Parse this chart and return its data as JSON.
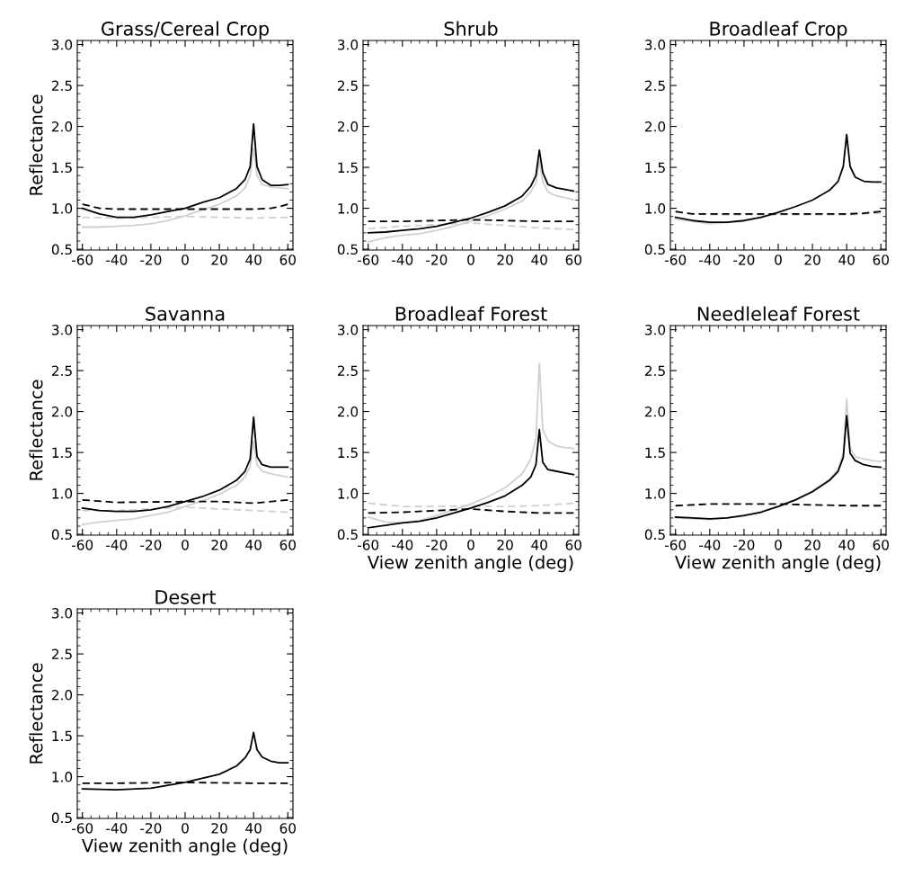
{
  "chart_data": [
    {
      "type": "line",
      "title": "Grass/Cereal Crop",
      "ylabel": "Reflectance",
      "xlim": [
        -63,
        63
      ],
      "ylim": [
        0.49,
        3.05
      ],
      "xticks": [
        -60,
        -40,
        -20,
        0,
        20,
        40,
        60
      ],
      "yticks": [
        0.5,
        {
          "value": 1,
          "label": "1.0"
        },
        1.5,
        {
          "value": 2,
          "label": "2.0"
        },
        2.5,
        {
          "value": 3,
          "label": "3.0"
        }
      ],
      "series": [
        {
          "color": "#d0d0d0",
          "line_style": "solid",
          "x": [
            -60,
            -50,
            -40,
            -30,
            -20,
            -10,
            0,
            10,
            20,
            30,
            35,
            38,
            40,
            42,
            45,
            50,
            55,
            60
          ],
          "values": [
            0.77,
            0.77,
            0.78,
            0.79,
            0.81,
            0.85,
            0.91,
            0.98,
            1.05,
            1.15,
            1.25,
            1.4,
            1.73,
            1.4,
            1.29,
            1.26,
            1.25,
            1.24
          ]
        },
        {
          "color": "#d0d0d0",
          "line_style": "dashed",
          "x": [
            -60,
            -40,
            0,
            20,
            40,
            60
          ],
          "values": [
            0.89,
            0.88,
            0.9,
            0.89,
            0.88,
            0.89
          ]
        },
        {
          "color": "#000000",
          "line_style": "solid",
          "x": [
            -60,
            -50,
            -40,
            -30,
            -20,
            -10,
            0,
            10,
            20,
            30,
            35,
            38,
            40,
            42,
            45,
            50,
            55,
            60
          ],
          "values": [
            1.0,
            0.93,
            0.89,
            0.89,
            0.92,
            0.96,
            1.0,
            1.07,
            1.13,
            1.24,
            1.35,
            1.51,
            2.03,
            1.51,
            1.35,
            1.28,
            1.28,
            1.29
          ]
        },
        {
          "color": "#000000",
          "line_style": "dashed",
          "x": [
            -60,
            -50,
            -40,
            0,
            40,
            50,
            55,
            60
          ],
          "values": [
            1.05,
            1.0,
            0.99,
            0.99,
            0.99,
            1.0,
            1.02,
            1.05
          ]
        }
      ]
    },
    {
      "type": "line",
      "title": "Shrub",
      "xlim": [
        -63,
        63
      ],
      "ylim": [
        0.49,
        3.05
      ],
      "xticks": [
        -60,
        -40,
        -20,
        0,
        20,
        40,
        60
      ],
      "yticks": [
        0.5,
        {
          "value": 1,
          "label": "1.0"
        },
        1.5,
        {
          "value": 2,
          "label": "2.0"
        },
        2.5,
        {
          "value": 3,
          "label": "3.0"
        }
      ],
      "series": [
        {
          "color": "#d0d0d0",
          "line_style": "solid",
          "x": [
            -60,
            -50,
            -40,
            -30,
            -20,
            -10,
            0,
            10,
            20,
            30,
            35,
            38,
            40,
            42,
            45,
            50,
            55,
            60
          ],
          "values": [
            0.59,
            0.64,
            0.67,
            0.69,
            0.73,
            0.78,
            0.84,
            0.91,
            0.99,
            1.09,
            1.2,
            1.31,
            1.58,
            1.33,
            1.2,
            1.15,
            1.13,
            1.1
          ]
        },
        {
          "color": "#d0d0d0",
          "line_style": "dashed",
          "x": [
            -60,
            -40,
            -20,
            0,
            20,
            40,
            60
          ],
          "values": [
            0.75,
            0.78,
            0.8,
            0.82,
            0.79,
            0.76,
            0.74
          ]
        },
        {
          "color": "#000000",
          "line_style": "solid",
          "x": [
            -60,
            -50,
            -40,
            -30,
            -20,
            -10,
            0,
            10,
            20,
            30,
            35,
            38,
            40,
            42,
            45,
            50,
            55,
            60
          ],
          "values": [
            0.7,
            0.71,
            0.73,
            0.75,
            0.78,
            0.83,
            0.88,
            0.95,
            1.03,
            1.15,
            1.27,
            1.4,
            1.71,
            1.44,
            1.29,
            1.25,
            1.23,
            1.21
          ]
        },
        {
          "color": "#000000",
          "line_style": "dashed",
          "x": [
            -60,
            -40,
            -20,
            0,
            20,
            40,
            60
          ],
          "values": [
            0.84,
            0.84,
            0.85,
            0.86,
            0.85,
            0.84,
            0.84
          ]
        }
      ]
    },
    {
      "type": "line",
      "title": "Broadleaf Crop",
      "xlim": [
        -63,
        63
      ],
      "ylim": [
        0.49,
        3.05
      ],
      "xticks": [
        -60,
        -40,
        -20,
        0,
        20,
        40,
        60
      ],
      "yticks": [
        0.5,
        {
          "value": 1,
          "label": "1.0"
        },
        1.5,
        {
          "value": 2,
          "label": "2.0"
        },
        2.5,
        {
          "value": 3,
          "label": "3.0"
        }
      ],
      "series": [
        {
          "color": "#d0d0d0",
          "line_style": "solid",
          "x": [
            -60,
            -40,
            -20,
            0
          ],
          "values": [
            0.87,
            0.81,
            0.84,
            0.94
          ]
        },
        {
          "color": "#d0d0d0",
          "line_style": "dashed",
          "x": [
            -60,
            -40,
            0,
            40,
            60
          ],
          "values": [
            0.95,
            0.92,
            0.92,
            0.92,
            0.94
          ]
        },
        {
          "color": "#000000",
          "line_style": "solid",
          "x": [
            -60,
            -50,
            -40,
            -30,
            -20,
            -10,
            0,
            10,
            20,
            30,
            35,
            38,
            40,
            42,
            45,
            50,
            55,
            60
          ],
          "values": [
            0.89,
            0.85,
            0.83,
            0.83,
            0.85,
            0.89,
            0.95,
            1.02,
            1.1,
            1.22,
            1.33,
            1.51,
            1.9,
            1.51,
            1.38,
            1.33,
            1.32,
            1.32
          ]
        },
        {
          "color": "#000000",
          "line_style": "dashed",
          "x": [
            -60,
            -50,
            -40,
            0,
            40,
            50,
            60
          ],
          "values": [
            0.96,
            0.93,
            0.93,
            0.93,
            0.93,
            0.94,
            0.96
          ]
        }
      ]
    },
    {
      "type": "line",
      "title": "Savanna",
      "ylabel": "Reflectance",
      "xlim": [
        -63,
        63
      ],
      "ylim": [
        0.49,
        3.05
      ],
      "xticks": [
        -60,
        -40,
        -20,
        0,
        20,
        40,
        60
      ],
      "yticks": [
        0.5,
        {
          "value": 1,
          "label": "1.0"
        },
        1.5,
        {
          "value": 2,
          "label": "2.0"
        },
        2.5,
        {
          "value": 3,
          "label": "3.0"
        }
      ],
      "series": [
        {
          "color": "#d0d0d0",
          "line_style": "solid",
          "x": [
            -60,
            -50,
            -40,
            -30,
            -20,
            -10,
            0,
            10,
            20,
            30,
            35,
            38,
            40,
            42,
            45,
            50,
            55,
            60
          ],
          "values": [
            0.62,
            0.65,
            0.67,
            0.69,
            0.73,
            0.77,
            0.84,
            0.91,
            0.99,
            1.1,
            1.2,
            1.33,
            1.64,
            1.35,
            1.27,
            1.24,
            1.22,
            1.2
          ]
        },
        {
          "color": "#d0d0d0",
          "line_style": "dashed",
          "x": [
            -60,
            -40,
            -20,
            0,
            20,
            40,
            60
          ],
          "values": [
            0.79,
            0.79,
            0.81,
            0.83,
            0.81,
            0.79,
            0.77
          ]
        },
        {
          "color": "#000000",
          "line_style": "solid",
          "x": [
            -60,
            -50,
            -40,
            -30,
            -20,
            -10,
            0,
            10,
            20,
            30,
            35,
            38,
            40,
            42,
            45,
            50,
            55,
            60
          ],
          "values": [
            0.82,
            0.79,
            0.78,
            0.78,
            0.8,
            0.84,
            0.9,
            0.96,
            1.04,
            1.16,
            1.27,
            1.42,
            1.93,
            1.45,
            1.35,
            1.32,
            1.32,
            1.32
          ]
        },
        {
          "color": "#000000",
          "line_style": "dashed",
          "x": [
            -60,
            -40,
            0,
            20,
            40,
            60
          ],
          "values": [
            0.92,
            0.89,
            0.9,
            0.9,
            0.88,
            0.92
          ]
        }
      ]
    },
    {
      "type": "line",
      "title": "Broadleaf Forest",
      "xlabel": "View zenith angle (deg)",
      "xlim": [
        -63,
        63
      ],
      "ylim": [
        0.49,
        3.05
      ],
      "xticks": [
        -60,
        -40,
        -20,
        0,
        20,
        40,
        60
      ],
      "yticks": [
        0.5,
        {
          "value": 1,
          "label": "1.0"
        },
        1.5,
        {
          "value": 2,
          "label": "2.0"
        },
        2.5,
        {
          "value": 3,
          "label": "3.0"
        }
      ],
      "series": [
        {
          "color": "#d0d0d0",
          "line_style": "solid",
          "x": [
            -60,
            -50,
            -40,
            -30,
            -20,
            -10,
            0,
            10,
            20,
            30,
            35,
            38,
            40,
            42,
            45,
            50,
            55,
            60
          ],
          "values": [
            0.71,
            0.65,
            0.64,
            0.67,
            0.73,
            0.8,
            0.87,
            0.96,
            1.07,
            1.24,
            1.42,
            1.67,
            2.59,
            1.78,
            1.64,
            1.58,
            1.56,
            1.55
          ]
        },
        {
          "color": "#d0d0d0",
          "line_style": "dashed",
          "x": [
            -60,
            -40,
            -20,
            0,
            20,
            40,
            60
          ],
          "values": [
            0.88,
            0.84,
            0.84,
            0.85,
            0.84,
            0.85,
            0.88
          ]
        },
        {
          "color": "#000000",
          "line_style": "solid",
          "x": [
            -60,
            -50,
            -40,
            -30,
            -20,
            -10,
            0,
            10,
            20,
            30,
            35,
            38,
            40,
            42,
            45,
            50,
            55,
            60
          ],
          "values": [
            0.58,
            0.61,
            0.64,
            0.66,
            0.7,
            0.76,
            0.82,
            0.89,
            0.97,
            1.1,
            1.2,
            1.35,
            1.78,
            1.38,
            1.29,
            1.27,
            1.25,
            1.23
          ]
        },
        {
          "color": "#000000",
          "line_style": "dashed",
          "x": [
            -60,
            -40,
            -20,
            0,
            20,
            40,
            60
          ],
          "values": [
            0.76,
            0.77,
            0.79,
            0.81,
            0.78,
            0.76,
            0.76
          ]
        }
      ]
    },
    {
      "type": "line",
      "title": "Needleleaf Forest",
      "xlabel": "View zenith angle (deg)",
      "xlim": [
        -63,
        63
      ],
      "ylim": [
        0.49,
        3.05
      ],
      "xticks": [
        -60,
        -40,
        -20,
        0,
        20,
        40,
        60
      ],
      "yticks": [
        0.5,
        {
          "value": 1,
          "label": "1.0"
        },
        1.5,
        {
          "value": 2,
          "label": "2.0"
        },
        2.5,
        {
          "value": 3,
          "label": "3.0"
        }
      ],
      "series": [
        {
          "color": "#d0d0d0",
          "line_style": "solid",
          "x": [
            -60,
            -40,
            -20,
            0,
            10,
            20,
            30,
            35,
            38,
            40,
            42,
            45,
            50,
            55,
            60
          ],
          "values": [
            0.7,
            0.68,
            0.72,
            0.84,
            0.92,
            1.03,
            1.17,
            1.3,
            1.49,
            2.15,
            1.55,
            1.45,
            1.42,
            1.4,
            1.39
          ]
        },
        {
          "color": "#000000",
          "line_style": "solid",
          "x": [
            -60,
            -50,
            -40,
            -30,
            -20,
            -10,
            0,
            10,
            20,
            30,
            35,
            38,
            40,
            42,
            45,
            50,
            55,
            60
          ],
          "values": [
            0.71,
            0.7,
            0.69,
            0.7,
            0.73,
            0.77,
            0.84,
            0.92,
            1.02,
            1.16,
            1.27,
            1.44,
            1.95,
            1.49,
            1.4,
            1.35,
            1.33,
            1.32
          ]
        },
        {
          "color": "#000000",
          "line_style": "dashed",
          "x": [
            -60,
            -40,
            -20,
            0,
            20,
            40,
            60
          ],
          "values": [
            0.85,
            0.87,
            0.87,
            0.87,
            0.86,
            0.85,
            0.85
          ]
        }
      ]
    },
    {
      "type": "line",
      "title": "Desert",
      "ylabel": "Reflectance",
      "xlabel": "View zenith angle (deg)",
      "xlim": [
        -63,
        63
      ],
      "ylim": [
        0.49,
        3.05
      ],
      "xticks": [
        -60,
        -40,
        -20,
        0,
        20,
        40,
        60
      ],
      "yticks": [
        0.5,
        {
          "value": 1,
          "label": "1.0"
        },
        1.5,
        {
          "value": 2,
          "label": "2.0"
        },
        2.5,
        {
          "value": 3,
          "label": "3.0"
        }
      ],
      "series": [
        {
          "color": "#000000",
          "line_style": "solid",
          "x": [
            -60,
            -40,
            -20,
            0,
            20,
            30,
            35,
            38,
            40,
            42,
            45,
            50,
            55,
            60
          ],
          "values": [
            0.85,
            0.84,
            0.86,
            0.93,
            1.03,
            1.13,
            1.23,
            1.33,
            1.54,
            1.33,
            1.24,
            1.19,
            1.17,
            1.17
          ]
        },
        {
          "color": "#000000",
          "line_style": "dashed",
          "x": [
            -60,
            -40,
            0,
            40,
            60
          ],
          "values": [
            0.92,
            0.92,
            0.93,
            0.92,
            0.92
          ]
        }
      ]
    }
  ]
}
